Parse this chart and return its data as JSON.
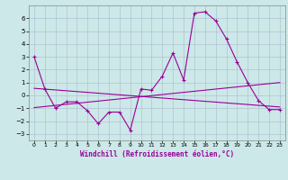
{
  "xlabel": "Windchill (Refroidissement éolien,°C)",
  "background_color": "#cce8e8",
  "grid_color": "#aabbcc",
  "line_color": "#990099",
  "x_hours": [
    0,
    1,
    2,
    3,
    4,
    5,
    6,
    7,
    8,
    9,
    10,
    11,
    12,
    13,
    14,
    15,
    16,
    17,
    18,
    19,
    20,
    21,
    22,
    23
  ],
  "main_y": [
    3,
    0.5,
    -1,
    -0.5,
    -0.5,
    -1.2,
    -2.2,
    -1.3,
    -1.3,
    -2.7,
    0.5,
    0.4,
    1.5,
    3.3,
    1.2,
    6.4,
    6.5,
    5.8,
    4.4,
    2.6,
    1.0,
    -0.4,
    -1.1,
    -1.1
  ],
  "trend1_x": [
    0,
    23
  ],
  "trend1_y": [
    0.55,
    -0.9
  ],
  "trend2_x": [
    0,
    23
  ],
  "trend2_y": [
    -0.95,
    1.0
  ],
  "ylim": [
    -3.5,
    7.0
  ],
  "xlim": [
    -0.5,
    23.5
  ],
  "yticks": [
    -3,
    -2,
    -1,
    0,
    1,
    2,
    3,
    4,
    5,
    6
  ],
  "xtick_labels": [
    "0",
    "1",
    "2",
    "3",
    "4",
    "5",
    "6",
    "7",
    "8",
    "9",
    "10",
    "11",
    "12",
    "13",
    "14",
    "15",
    "16",
    "17",
    "18",
    "19",
    "20",
    "21",
    "22",
    "23"
  ],
  "ylabel_fontsize": 5.5,
  "tick_fontsize": 5.0,
  "linewidth": 0.8
}
